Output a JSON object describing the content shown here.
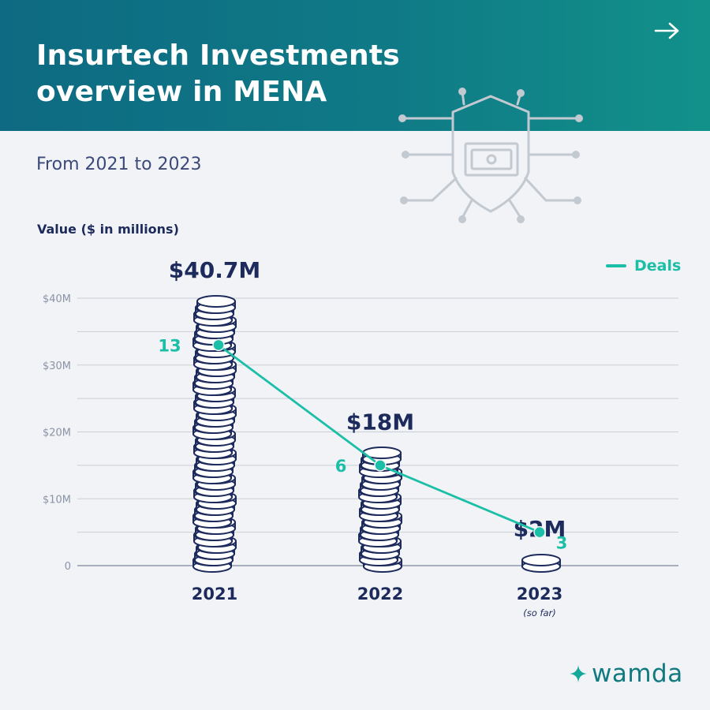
{
  "header": {
    "title_line1": "Insurtech Investments",
    "title_line2": "overview in MENA",
    "arrow_icon": "arrow-right-icon"
  },
  "subtitle": "From 2021 to 2023",
  "decoration_icon": "shield-circuit-money-icon",
  "brand": {
    "name": "wamda",
    "icon": "sparkle-star-icon",
    "color": "#117a80"
  },
  "colors": {
    "header": "#0f7a86",
    "deals": "#1bbfa7",
    "text": "#1d2b5c",
    "coin": "#1d2b5c"
  },
  "chart_data": {
    "type": "bar",
    "bar_style": "coin stacks",
    "ylabel": "Value ($ in millions)",
    "categories": [
      "2021",
      "2022",
      "2023"
    ],
    "category_notes": [
      "",
      "",
      "(so far)"
    ],
    "ylim": [
      0,
      40
    ],
    "yticks": [
      0,
      10,
      20,
      30,
      40
    ],
    "ytick_labels": [
      "0",
      "$10M",
      "$20M",
      "$30M",
      "$40M"
    ],
    "grid": true,
    "legend": "top-right",
    "series": [
      {
        "name": "",
        "type": "bar",
        "values": [
          40.7,
          18,
          2
        ],
        "labels": [
          "$40.7M",
          "$18M",
          "$2M"
        ]
      },
      {
        "name": "Deals",
        "type": "line",
        "values": [
          13,
          6,
          3
        ],
        "labels": [
          "13",
          "6",
          "3"
        ],
        "plot_y_millions": [
          33,
          15,
          5
        ]
      }
    ]
  }
}
